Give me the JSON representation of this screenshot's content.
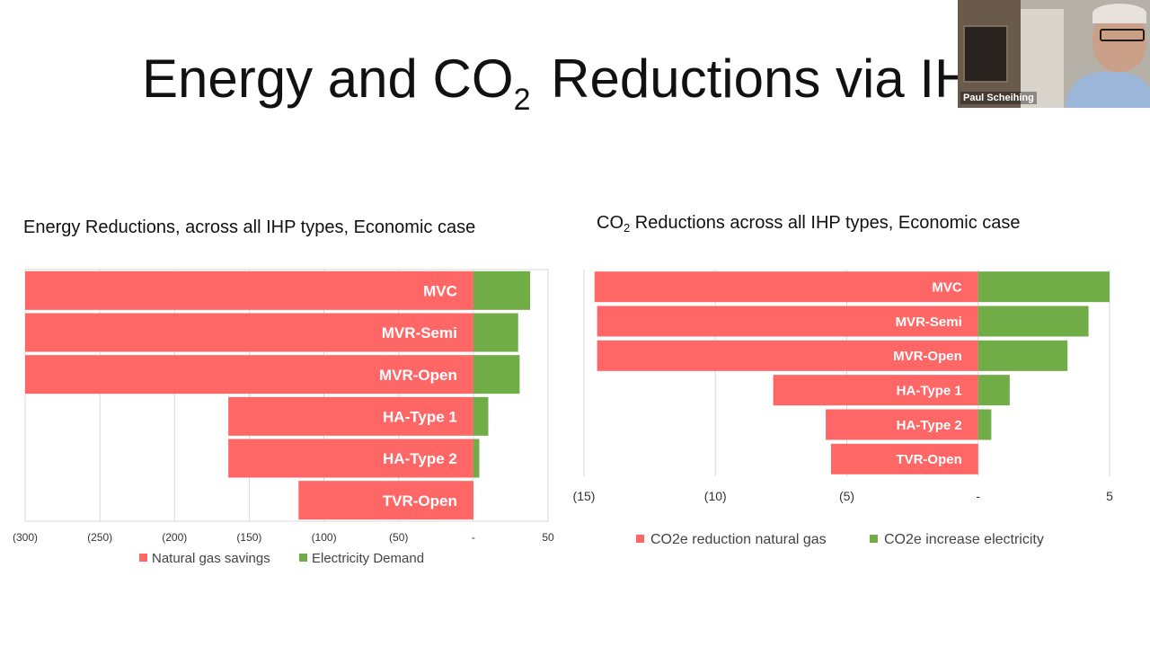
{
  "slide": {
    "title_main": "Energy and CO",
    "title_sub": "2",
    "title_rest": " Reductions via IH"
  },
  "video": {
    "participant_name": "Paul Scheihing"
  },
  "colors": {
    "red": "#ff6666",
    "green": "#70ad47",
    "grid": "#d9d9d9"
  },
  "chart_data": [
    {
      "type": "bar",
      "orientation": "horizontal-stacked",
      "title_main": "Energy Reductions, across all IHP types, Economic case",
      "categories": [
        "MVC",
        "MVR-Semi",
        "MVR-Open",
        "HA-Type 1",
        "HA-Type 2",
        "TVR-Open"
      ],
      "series": [
        {
          "name": "Natural gas savings",
          "values": [
            -300,
            -300,
            -300,
            -164,
            -164,
            -117
          ]
        },
        {
          "name": "Electricity Demand",
          "values": [
            38,
            30,
            31,
            10,
            4,
            0
          ]
        }
      ],
      "xlim": [
        -300,
        50
      ],
      "xticks": [
        {
          "value": -300,
          "label": "(300)"
        },
        {
          "value": -250,
          "label": "(250)"
        },
        {
          "value": -200,
          "label": "(200)"
        },
        {
          "value": -150,
          "label": "(150)"
        },
        {
          "value": -100,
          "label": "(100)"
        },
        {
          "value": -50,
          "label": "(50)"
        },
        {
          "value": 0,
          "label": "-"
        },
        {
          "value": 50,
          "label": "50"
        }
      ],
      "legend": "bottom",
      "grid": true
    },
    {
      "type": "bar",
      "orientation": "horizontal-stacked",
      "title_main": "CO",
      "title_sub": "2",
      "title_rest": " Reductions across all IHP types, Economic case",
      "categories": [
        "MVC",
        "MVR-Semi",
        "MVR-Open",
        "HA-Type 1",
        "HA-Type 2",
        "TVR-Open"
      ],
      "series": [
        {
          "name": "CO2e reduction natural gas",
          "values": [
            -14.6,
            -14.5,
            -14.5,
            -7.8,
            -5.8,
            -5.6
          ]
        },
        {
          "name": "CO2e increase electricity",
          "values": [
            5.0,
            4.2,
            3.4,
            1.2,
            0.5,
            0
          ]
        }
      ],
      "xlim": [
        -15,
        5
      ],
      "xticks": [
        {
          "value": -15,
          "label": "(15)"
        },
        {
          "value": -10,
          "label": "(10)"
        },
        {
          "value": -5,
          "label": "(5)"
        },
        {
          "value": 0,
          "label": "-"
        },
        {
          "value": 5,
          "label": "5"
        }
      ],
      "legend": "bottom",
      "grid": true
    }
  ]
}
